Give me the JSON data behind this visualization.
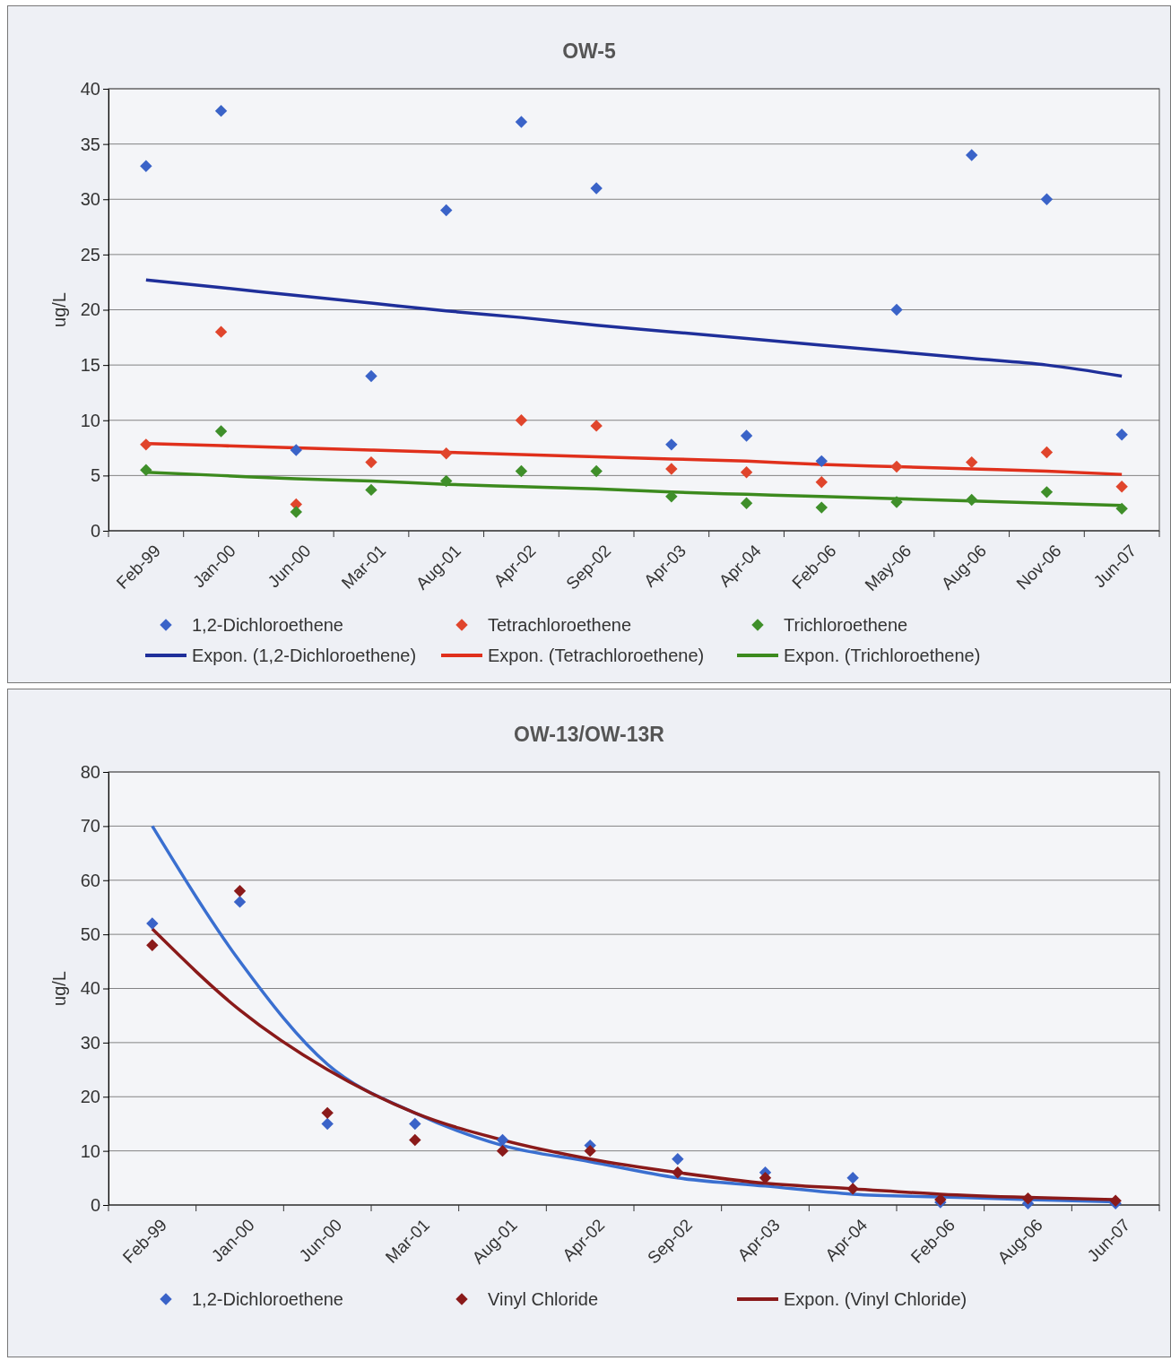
{
  "chart_data": [
    {
      "type": "scatter",
      "title": "OW-5",
      "ylabel": "ug/L",
      "ylim": [
        0,
        40
      ],
      "yticks": [
        0,
        5,
        10,
        15,
        20,
        25,
        30,
        35,
        40
      ],
      "grid": "y",
      "legend": "bottom",
      "marker": "diamond",
      "categories": [
        "Feb-99",
        "Jan-00",
        "Jun-00",
        "Mar-01",
        "Aug-01",
        "Apr-02",
        "Sep-02",
        "Apr-03",
        "Apr-04",
        "Feb-06",
        "May-06",
        "Aug-06",
        "Nov-06",
        "Jun-07"
      ],
      "series": [
        {
          "name": "1,2-Dichloroethene",
          "color": "#3a63c8",
          "values": [
            33,
            38,
            7.3,
            14,
            29,
            37,
            31,
            7.8,
            8.6,
            6.3,
            20,
            34,
            30,
            8.7
          ]
        },
        {
          "name": "Tetrachloroethene",
          "color": "#e0452c",
          "values": [
            7.8,
            18,
            2.4,
            6.2,
            7,
            10,
            9.5,
            5.6,
            5.3,
            4.4,
            5.8,
            6.2,
            7.1,
            4
          ]
        },
        {
          "name": "Trichloroethene",
          "color": "#3f8f2a",
          "values": [
            5.5,
            9,
            1.7,
            3.7,
            4.5,
            5.4,
            5.4,
            3.1,
            2.5,
            2.1,
            2.6,
            2.8,
            3.5,
            2
          ]
        },
        {
          "name": "Expon. (1,2-Dichloroethene)",
          "type": "line",
          "marker": "none",
          "color": "#1f2f9a",
          "values": [
            22.7,
            22,
            21.3,
            20.6,
            19.9,
            19.3,
            18.6,
            18,
            17.4,
            16.8,
            16.2,
            15.6,
            15,
            14
          ]
        },
        {
          "name": "Expon. (Tetrachloroethene)",
          "type": "line",
          "marker": "none",
          "color": "#e0301c",
          "values": [
            7.9,
            7.7,
            7.5,
            7.3,
            7.1,
            6.9,
            6.7,
            6.5,
            6.3,
            6,
            5.8,
            5.6,
            5.4,
            5.1
          ]
        },
        {
          "name": "Expon. (Trichloroethene)",
          "type": "line",
          "marker": "none",
          "color": "#3c8a1e",
          "values": [
            5.3,
            5,
            4.7,
            4.5,
            4.2,
            4,
            3.8,
            3.5,
            3.3,
            3.1,
            2.9,
            2.7,
            2.5,
            2.3
          ]
        }
      ]
    },
    {
      "type": "scatter",
      "title": "OW-13/OW-13R",
      "ylabel": "ug/L",
      "ylim": [
        0,
        80
      ],
      "yticks": [
        0,
        10,
        20,
        30,
        40,
        50,
        60,
        70,
        80
      ],
      "grid": "y",
      "legend": "bottom",
      "marker": "diamond",
      "categories": [
        "Feb-99",
        "Jan-00",
        "Jun-00",
        "Mar-01",
        "Aug-01",
        "Apr-02",
        "Sep-02",
        "Apr-03",
        "Apr-04",
        "Feb-06",
        "Aug-06",
        "Jun-07"
      ],
      "series": [
        {
          "name": "1,2-Dichloroethene",
          "color": "#3a63c8",
          "values": [
            52,
            56,
            15,
            15,
            12,
            11,
            8.5,
            6,
            5,
            0.5,
            0.3,
            0.3
          ]
        },
        {
          "name": "Vinyl Chloride",
          "color": "#8a1a1a",
          "values": [
            48,
            58,
            17,
            12,
            10,
            10,
            6,
            5,
            3,
            1,
            1.2,
            0.8
          ]
        },
        {
          "type": "line",
          "marker": "none",
          "color": "#3a6fd0",
          "values": [
            70,
            45,
            26,
            17,
            11,
            8,
            5,
            3.5,
            2,
            1.5,
            1,
            0.6
          ]
        },
        {
          "name": "Expon. (Vinyl Chloride)",
          "type": "line",
          "marker": "none",
          "color": "#8a1a1a",
          "values": [
            51,
            36,
            25,
            17,
            12,
            8.5,
            6,
            4,
            3,
            2,
            1.4,
            1
          ]
        }
      ]
    }
  ]
}
